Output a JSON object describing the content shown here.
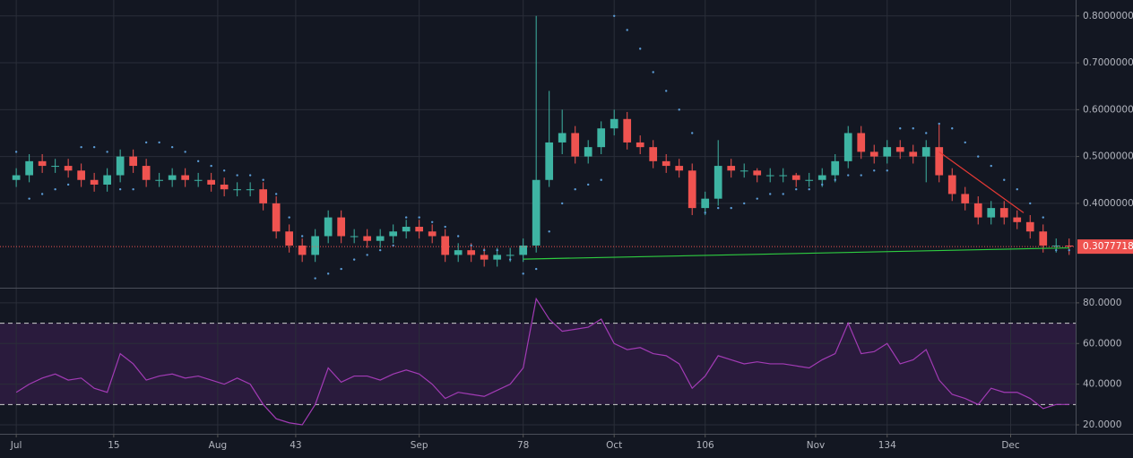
{
  "chart_data": [
    {
      "type": "candlestick",
      "x": [
        0,
        2,
        4,
        6,
        8,
        10,
        12,
        14,
        16,
        18,
        20,
        22,
        24,
        26,
        28,
        30,
        32,
        34,
        36,
        38,
        40,
        42,
        44,
        46,
        48,
        50,
        52,
        54,
        56,
        58,
        60,
        62,
        64,
        66,
        68,
        70,
        72,
        74,
        76,
        78,
        80,
        82,
        84,
        86,
        88,
        90,
        92,
        94,
        96,
        98,
        100,
        102,
        104,
        106,
        108,
        110,
        112,
        114,
        116,
        118,
        120,
        122,
        124,
        126,
        128,
        130,
        132,
        134,
        136,
        138,
        140,
        142,
        144,
        146,
        148,
        150,
        152,
        154,
        156,
        158,
        160,
        162
      ],
      "open": [
        0.45,
        0.46,
        0.49,
        0.48,
        0.48,
        0.47,
        0.45,
        0.44,
        0.46,
        0.5,
        0.48,
        0.45,
        0.45,
        0.46,
        0.45,
        0.45,
        0.44,
        0.43,
        0.43,
        0.43,
        0.4,
        0.34,
        0.31,
        0.29,
        0.33,
        0.37,
        0.33,
        0.33,
        0.32,
        0.33,
        0.34,
        0.35,
        0.34,
        0.33,
        0.29,
        0.3,
        0.29,
        0.28,
        0.29,
        0.29,
        0.31,
        0.45,
        0.53,
        0.55,
        0.5,
        0.52,
        0.56,
        0.58,
        0.53,
        0.52,
        0.49,
        0.48,
        0.47,
        0.39,
        0.41,
        0.48,
        0.47,
        0.47,
        0.46,
        0.46,
        0.46,
        0.45,
        0.45,
        0.46,
        0.49,
        0.55,
        0.51,
        0.5,
        0.52,
        0.51,
        0.5,
        0.52,
        0.46,
        0.42,
        0.4,
        0.37,
        0.39,
        0.37,
        0.36,
        0.34,
        0.31,
        0.31
      ],
      "high": [
        0.475,
        0.505,
        0.505,
        0.495,
        0.495,
        0.485,
        0.465,
        0.475,
        0.515,
        0.515,
        0.495,
        0.465,
        0.475,
        0.475,
        0.465,
        0.465,
        0.455,
        0.445,
        0.445,
        0.445,
        0.415,
        0.355,
        0.325,
        0.345,
        0.385,
        0.385,
        0.345,
        0.345,
        0.345,
        0.355,
        0.365,
        0.365,
        0.355,
        0.345,
        0.315,
        0.315,
        0.305,
        0.305,
        0.305,
        0.325,
        0.8,
        0.64,
        0.6,
        0.565,
        0.535,
        0.575,
        0.6,
        0.595,
        0.545,
        0.535,
        0.505,
        0.495,
        0.485,
        0.425,
        0.535,
        0.495,
        0.485,
        0.475,
        0.475,
        0.475,
        0.465,
        0.465,
        0.475,
        0.505,
        0.565,
        0.565,
        0.525,
        0.535,
        0.535,
        0.525,
        0.535,
        0.57,
        0.475,
        0.435,
        0.415,
        0.405,
        0.405,
        0.385,
        0.375,
        0.355,
        0.325,
        0.325
      ],
      "low": [
        0.435,
        0.445,
        0.465,
        0.465,
        0.455,
        0.435,
        0.425,
        0.425,
        0.445,
        0.465,
        0.435,
        0.435,
        0.435,
        0.435,
        0.435,
        0.425,
        0.415,
        0.415,
        0.415,
        0.385,
        0.325,
        0.295,
        0.275,
        0.275,
        0.315,
        0.315,
        0.315,
        0.305,
        0.305,
        0.315,
        0.325,
        0.325,
        0.315,
        0.275,
        0.275,
        0.275,
        0.265,
        0.265,
        0.275,
        0.275,
        0.295,
        0.435,
        0.505,
        0.485,
        0.485,
        0.505,
        0.545,
        0.515,
        0.505,
        0.475,
        0.465,
        0.455,
        0.375,
        0.375,
        0.395,
        0.455,
        0.455,
        0.445,
        0.445,
        0.445,
        0.435,
        0.435,
        0.435,
        0.445,
        0.475,
        0.495,
        0.485,
        0.485,
        0.495,
        0.485,
        0.445,
        0.445,
        0.405,
        0.385,
        0.355,
        0.355,
        0.355,
        0.345,
        0.325,
        0.295,
        0.295,
        0.29
      ],
      "close": [
        0.46,
        0.49,
        0.48,
        0.48,
        0.47,
        0.45,
        0.44,
        0.46,
        0.5,
        0.48,
        0.45,
        0.45,
        0.46,
        0.45,
        0.45,
        0.44,
        0.43,
        0.43,
        0.43,
        0.4,
        0.34,
        0.31,
        0.29,
        0.33,
        0.37,
        0.33,
        0.33,
        0.32,
        0.33,
        0.34,
        0.35,
        0.34,
        0.33,
        0.29,
        0.3,
        0.29,
        0.28,
        0.29,
        0.29,
        0.31,
        0.45,
        0.53,
        0.55,
        0.5,
        0.52,
        0.56,
        0.58,
        0.53,
        0.52,
        0.49,
        0.48,
        0.47,
        0.39,
        0.41,
        0.48,
        0.47,
        0.47,
        0.46,
        0.46,
        0.46,
        0.45,
        0.45,
        0.46,
        0.49,
        0.55,
        0.51,
        0.5,
        0.52,
        0.51,
        0.5,
        0.52,
        0.46,
        0.42,
        0.4,
        0.37,
        0.39,
        0.37,
        0.36,
        0.34,
        0.31,
        0.31,
        0.308
      ],
      "up_color": "#3eb4a3",
      "down_color": "#ef5350",
      "series": [
        {
          "color": "#5b9bd5",
          "values": [
            0.51,
            0.41,
            0.42,
            0.43,
            0.44,
            0.52,
            0.52,
            0.51,
            0.43,
            0.43,
            0.53,
            0.53,
            0.52,
            0.51,
            0.49,
            0.48,
            0.47,
            0.46,
            0.46,
            0.45,
            0.42,
            0.37,
            0.33,
            0.24,
            0.25,
            0.26,
            0.28,
            0.29,
            0.3,
            0.31,
            0.37,
            0.37,
            0.36,
            0.35,
            0.33,
            0.31,
            0.3,
            0.3,
            0.28,
            0.25,
            0.26,
            0.34,
            0.4,
            0.43,
            0.44,
            0.45,
            0.8,
            0.77,
            0.73,
            0.68,
            0.64,
            0.6,
            0.55,
            0.38,
            0.39,
            0.39,
            0.4,
            0.41,
            0.42,
            0.42,
            0.43,
            0.43,
            0.44,
            0.45,
            0.46,
            0.46,
            0.47,
            0.47,
            0.56,
            0.56,
            0.55,
            0.57,
            0.56,
            0.53,
            0.5,
            0.48,
            0.45,
            0.43,
            0.4,
            0.37,
            0.3,
            0.3
          ]
        }
      ],
      "trend_lines": [
        {
          "color": "#2ecc40",
          "x": [
            78,
            162
          ],
          "values": [
            0.281,
            0.305
          ]
        },
        {
          "color": "#e53935",
          "x": [
            142,
            155
          ],
          "values": [
            0.51,
            0.38
          ]
        }
      ],
      "last_price": 0.3077718,
      "last_price_color": "#ef5350",
      "xlim": [
        -2.5,
        163
      ],
      "ylim": [
        0.22,
        0.834
      ],
      "yticks": [
        {
          "value": 0.4,
          "label": "0.4000000"
        },
        {
          "value": 0.5,
          "label": "0.5000000"
        },
        {
          "value": 0.6,
          "label": "0.6000000"
        },
        {
          "value": 0.7,
          "label": "0.7000000"
        },
        {
          "value": 0.8,
          "label": "0.8000000"
        }
      ],
      "grid": true
    },
    {
      "type": "line",
      "x": [
        0,
        2,
        4,
        6,
        8,
        10,
        12,
        14,
        16,
        18,
        20,
        22,
        24,
        26,
        28,
        30,
        32,
        34,
        36,
        38,
        40,
        42,
        44,
        46,
        48,
        50,
        52,
        54,
        56,
        58,
        60,
        62,
        64,
        66,
        68,
        70,
        72,
        74,
        76,
        78,
        80,
        82,
        84,
        86,
        88,
        90,
        92,
        94,
        96,
        98,
        100,
        102,
        104,
        106,
        108,
        110,
        112,
        114,
        116,
        118,
        120,
        122,
        124,
        126,
        128,
        130,
        132,
        134,
        136,
        138,
        140,
        142,
        144,
        146,
        148,
        150,
        152,
        154,
        156,
        158,
        160,
        162
      ],
      "series": [
        {
          "color": "#a23bb5",
          "values": [
            36,
            40,
            43,
            45,
            42,
            43,
            38,
            36,
            55,
            50,
            42,
            44,
            45,
            43,
            44,
            42,
            40,
            43,
            40,
            30,
            23,
            21,
            20,
            30,
            48,
            41,
            44,
            44,
            42,
            45,
            47,
            45,
            40,
            33,
            36,
            35,
            34,
            37,
            40,
            48,
            82,
            72,
            66,
            67,
            68,
            72,
            60,
            57,
            58,
            55,
            54,
            50,
            38,
            44,
            54,
            52,
            50,
            51,
            50,
            50,
            49,
            48,
            52,
            55,
            70,
            55,
            56,
            60,
            50,
            52,
            57,
            42,
            35,
            33,
            30,
            38,
            36,
            36,
            33,
            28,
            30,
            30
          ]
        }
      ],
      "bands": [
        30,
        70
      ],
      "band_color": "#2a1b3d",
      "xlim": [
        -2.5,
        163
      ],
      "ylim": [
        15.6,
        87
      ],
      "yticks": [
        {
          "value": 20,
          "label": "20.0000"
        },
        {
          "value": 40,
          "label": "40.0000"
        },
        {
          "value": 60,
          "label": "60.0000"
        },
        {
          "value": 80,
          "label": "80.0000"
        }
      ],
      "xticks": [
        {
          "value": 0,
          "label": "Jul"
        },
        15,
        {
          "value": 31,
          "label": "Aug"
        },
        43,
        {
          "value": 62,
          "label": "Sep"
        },
        78,
        {
          "value": 92,
          "label": "Oct"
        },
        106,
        {
          "value": 123,
          "label": "Nov"
        },
        134,
        {
          "value": 153,
          "label": "Dec"
        }
      ],
      "grid": true
    }
  ]
}
